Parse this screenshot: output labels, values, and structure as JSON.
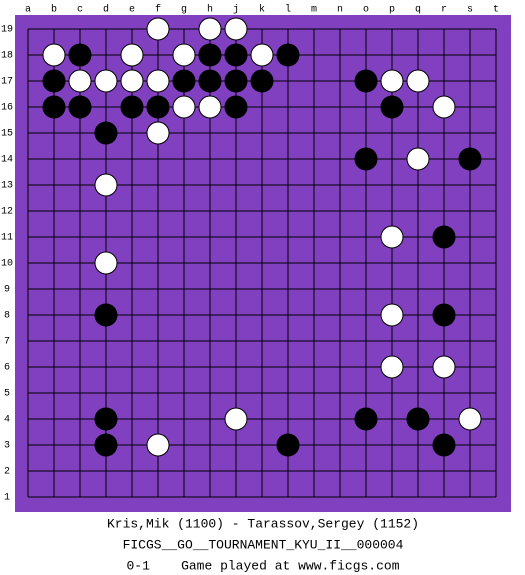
{
  "board": {
    "columns": [
      "a",
      "b",
      "c",
      "d",
      "e",
      "f",
      "g",
      "h",
      "j",
      "k",
      "l",
      "m",
      "n",
      "o",
      "p",
      "q",
      "r",
      "s",
      "t"
    ],
    "rows": [
      19,
      18,
      17,
      16,
      15,
      14,
      13,
      12,
      11,
      10,
      9,
      8,
      7,
      6,
      5,
      4,
      3,
      2,
      1
    ],
    "stones": [
      {
        "col": "f",
        "row": 19,
        "color": "white"
      },
      {
        "col": "h",
        "row": 19,
        "color": "white"
      },
      {
        "col": "j",
        "row": 19,
        "color": "white"
      },
      {
        "col": "b",
        "row": 18,
        "color": "white"
      },
      {
        "col": "c",
        "row": 18,
        "color": "black"
      },
      {
        "col": "e",
        "row": 18,
        "color": "white"
      },
      {
        "col": "g",
        "row": 18,
        "color": "white"
      },
      {
        "col": "h",
        "row": 18,
        "color": "black"
      },
      {
        "col": "j",
        "row": 18,
        "color": "black"
      },
      {
        "col": "k",
        "row": 18,
        "color": "white"
      },
      {
        "col": "l",
        "row": 18,
        "color": "black"
      },
      {
        "col": "b",
        "row": 17,
        "color": "black"
      },
      {
        "col": "c",
        "row": 17,
        "color": "white"
      },
      {
        "col": "d",
        "row": 17,
        "color": "white"
      },
      {
        "col": "e",
        "row": 17,
        "color": "white"
      },
      {
        "col": "f",
        "row": 17,
        "color": "white"
      },
      {
        "col": "g",
        "row": 17,
        "color": "black"
      },
      {
        "col": "h",
        "row": 17,
        "color": "black"
      },
      {
        "col": "j",
        "row": 17,
        "color": "black"
      },
      {
        "col": "k",
        "row": 17,
        "color": "black"
      },
      {
        "col": "o",
        "row": 17,
        "color": "black"
      },
      {
        "col": "p",
        "row": 17,
        "color": "white"
      },
      {
        "col": "q",
        "row": 17,
        "color": "white"
      },
      {
        "col": "b",
        "row": 16,
        "color": "black"
      },
      {
        "col": "c",
        "row": 16,
        "color": "black"
      },
      {
        "col": "e",
        "row": 16,
        "color": "black"
      },
      {
        "col": "f",
        "row": 16,
        "color": "black"
      },
      {
        "col": "g",
        "row": 16,
        "color": "white"
      },
      {
        "col": "h",
        "row": 16,
        "color": "white"
      },
      {
        "col": "j",
        "row": 16,
        "color": "black"
      },
      {
        "col": "p",
        "row": 16,
        "color": "black"
      },
      {
        "col": "r",
        "row": 16,
        "color": "white"
      },
      {
        "col": "d",
        "row": 15,
        "color": "black"
      },
      {
        "col": "f",
        "row": 15,
        "color": "white"
      },
      {
        "col": "o",
        "row": 14,
        "color": "black"
      },
      {
        "col": "q",
        "row": 14,
        "color": "white"
      },
      {
        "col": "s",
        "row": 14,
        "color": "black"
      },
      {
        "col": "d",
        "row": 13,
        "color": "white"
      },
      {
        "col": "p",
        "row": 11,
        "color": "white"
      },
      {
        "col": "r",
        "row": 11,
        "color": "black"
      },
      {
        "col": "d",
        "row": 10,
        "color": "white"
      },
      {
        "col": "d",
        "row": 8,
        "color": "black"
      },
      {
        "col": "p",
        "row": 8,
        "color": "white"
      },
      {
        "col": "r",
        "row": 8,
        "color": "black"
      },
      {
        "col": "p",
        "row": 6,
        "color": "white"
      },
      {
        "col": "r",
        "row": 6,
        "color": "white"
      },
      {
        "col": "d",
        "row": 4,
        "color": "black"
      },
      {
        "col": "j",
        "row": 4,
        "color": "white"
      },
      {
        "col": "o",
        "row": 4,
        "color": "black"
      },
      {
        "col": "q",
        "row": 4,
        "color": "black"
      },
      {
        "col": "s",
        "row": 4,
        "color": "white"
      },
      {
        "col": "d",
        "row": 3,
        "color": "black"
      },
      {
        "col": "f",
        "row": 3,
        "color": "white"
      },
      {
        "col": "l",
        "row": 3,
        "color": "black"
      },
      {
        "col": "r",
        "row": 3,
        "color": "black"
      }
    ]
  },
  "caption": [
    "Kris,Mik (1100) - Tarassov,Sergey (1152)",
    "FICGS__GO__TOURNAMENT_KYU_II__000004",
    "0-1    Game played at www.ficgs.com"
  ]
}
